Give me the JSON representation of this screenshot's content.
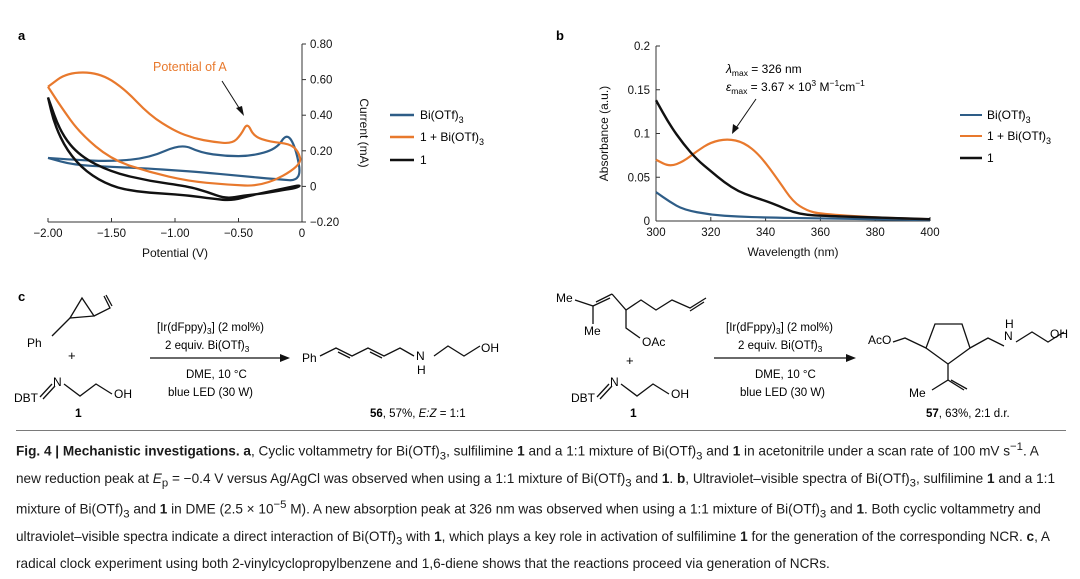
{
  "colors": {
    "blue": "#2e5d87",
    "orange": "#e8792d",
    "black": "#111111",
    "axis": "#333333"
  },
  "panel_a": {
    "label": "a",
    "annotation": "Potential of A",
    "legend": [
      {
        "name": "Bi(OTf)",
        "sub": "3",
        "color": "#2e5d87"
      },
      {
        "name": "1 + Bi(OTf)",
        "sub": "3",
        "color": "#e8792d"
      },
      {
        "name": "1",
        "sub": "",
        "color": "#111111"
      }
    ]
  },
  "panel_b": {
    "label": "b",
    "lambda_label": "λ",
    "lambda_sub": "max",
    "lambda_value": " = 326 nm",
    "epsilon_label": "ε",
    "epsilon_sub": "max",
    "epsilon_value": " = 3.67 × 10",
    "epsilon_exp": "3",
    "epsilon_unit1": " M",
    "epsilon_exp2": "−1",
    "epsilon_unit2": "cm",
    "epsilon_exp3": "−1",
    "legend": [
      {
        "name": "Bi(OTf)",
        "sub": "3",
        "color": "#2e5d87"
      },
      {
        "name": "1 + Bi(OTf)",
        "sub": "3",
        "color": "#e8792d"
      },
      {
        "name": "1",
        "sub": "",
        "color": "#111111"
      }
    ]
  },
  "chart_data": [
    {
      "type": "line",
      "title": "",
      "xlabel": "Potential (V)",
      "ylabel": "Current (mA)",
      "xlim": [
        -2.0,
        0
      ],
      "ylim": [
        -0.2,
        0.8
      ],
      "xticks": [
        "−2.00",
        "−1.50",
        "−1.00",
        "−0.50",
        "0"
      ],
      "xtick_values": [
        -2.0,
        -1.5,
        -1.0,
        -0.5,
        0
      ],
      "yticks": [
        "0.80",
        "0.60",
        "0.40",
        "0.20",
        "0",
        "−0.20"
      ],
      "ytick_values": [
        0.8,
        0.6,
        0.4,
        0.2,
        0,
        -0.2
      ],
      "annotation": {
        "text": "Potential of A",
        "x": -0.45,
        "y": 0.37
      },
      "series": [
        {
          "name": "Bi(OTf)3",
          "color": "#2e5d87",
          "points": [
            [
              -2.0,
              0.16
            ],
            [
              -1.8,
              0.15
            ],
            [
              -1.5,
              0.14
            ],
            [
              -1.2,
              0.16
            ],
            [
              -0.95,
              0.24
            ],
            [
              -0.8,
              0.19
            ],
            [
              -0.6,
              0.17
            ],
            [
              -0.4,
              0.17
            ],
            [
              -0.2,
              0.21
            ],
            [
              -0.12,
              0.3
            ],
            [
              -0.05,
              0.22
            ],
            [
              0,
              0.03
            ],
            [
              -0.2,
              0.04
            ],
            [
              -0.5,
              0.06
            ],
            [
              -0.8,
              0.08
            ],
            [
              -1.0,
              0.09
            ],
            [
              -1.2,
              0.1
            ],
            [
              -1.5,
              0.11
            ],
            [
              -1.8,
              0.12
            ],
            [
              -2.0,
              0.16
            ]
          ]
        },
        {
          "name": "1 + Bi(OTf)3",
          "color": "#e8792d",
          "points": [
            [
              -2.0,
              0.56
            ],
            [
              -1.85,
              0.64
            ],
            [
              -1.6,
              0.64
            ],
            [
              -1.4,
              0.55
            ],
            [
              -1.2,
              0.4
            ],
            [
              -1.0,
              0.31
            ],
            [
              -0.85,
              0.27
            ],
            [
              -0.7,
              0.25
            ],
            [
              -0.55,
              0.24
            ],
            [
              -0.48,
              0.29
            ],
            [
              -0.43,
              0.36
            ],
            [
              -0.38,
              0.28
            ],
            [
              -0.25,
              0.25
            ],
            [
              -0.1,
              0.24
            ],
            [
              -0.03,
              0.2
            ],
            [
              0,
              0.12
            ],
            [
              -0.3,
              0.0
            ],
            [
              -0.6,
              0.01
            ],
            [
              -0.9,
              0.03
            ],
            [
              -1.2,
              0.08
            ],
            [
              -1.5,
              0.15
            ],
            [
              -1.75,
              0.3
            ],
            [
              -1.9,
              0.45
            ],
            [
              -2.0,
              0.56
            ]
          ]
        },
        {
          "name": "1",
          "color": "#111111",
          "points": [
            [
              -2.0,
              0.5
            ],
            [
              -1.9,
              0.3
            ],
            [
              -1.75,
              0.17
            ],
            [
              -1.5,
              0.08
            ],
            [
              -1.2,
              0.03
            ],
            [
              -0.9,
              0.0
            ],
            [
              -0.75,
              -0.03
            ],
            [
              -0.6,
              -0.07
            ],
            [
              -0.45,
              -0.05
            ],
            [
              -0.3,
              -0.04
            ],
            [
              -0.15,
              -0.02
            ],
            [
              -0.05,
              -0.01
            ],
            [
              0,
              0.01
            ],
            [
              -0.2,
              -0.02
            ],
            [
              -0.4,
              -0.05
            ],
            [
              -0.55,
              -0.08
            ],
            [
              -0.7,
              -0.07
            ],
            [
              -0.9,
              -0.05
            ],
            [
              -1.1,
              -0.04
            ],
            [
              -1.3,
              -0.03
            ],
            [
              -1.5,
              0.0
            ],
            [
              -1.7,
              0.08
            ],
            [
              -1.85,
              0.2
            ],
            [
              -1.95,
              0.35
            ],
            [
              -2.0,
              0.5
            ]
          ]
        }
      ]
    },
    {
      "type": "line",
      "title": "",
      "xlabel": "Wavelength (nm)",
      "ylabel": "Absorbance (a.u.)",
      "xlim": [
        300,
        400
      ],
      "ylim": [
        0,
        0.2
      ],
      "xticks": [
        "300",
        "320",
        "340",
        "360",
        "380",
        "400"
      ],
      "xtick_values": [
        300,
        320,
        340,
        360,
        380,
        400
      ],
      "yticks": [
        "0.2",
        "0.15",
        "0.1",
        "0.05",
        "0"
      ],
      "ytick_values": [
        0.2,
        0.15,
        0.1,
        0.05,
        0
      ],
      "annotation": {
        "text": "λmax = 326 nm",
        "x": 326,
        "y": 0.094
      },
      "series": [
        {
          "name": "Bi(OTf)3",
          "color": "#2e5d87",
          "points": [
            [
              300,
              0.033
            ],
            [
              305,
              0.022
            ],
            [
              310,
              0.013
            ],
            [
              320,
              0.007
            ],
            [
              330,
              0.005
            ],
            [
              340,
              0.004
            ],
            [
              360,
              0.003
            ],
            [
              380,
              0.002
            ],
            [
              400,
              0.001
            ]
          ]
        },
        {
          "name": "1 + Bi(OTf)3",
          "color": "#e8792d",
          "points": [
            [
              300,
              0.07
            ],
            [
              305,
              0.062
            ],
            [
              310,
              0.068
            ],
            [
              315,
              0.08
            ],
            [
              320,
              0.09
            ],
            [
              326,
              0.094
            ],
            [
              332,
              0.09
            ],
            [
              338,
              0.075
            ],
            [
              345,
              0.045
            ],
            [
              350,
              0.022
            ],
            [
              355,
              0.012
            ],
            [
              360,
              0.008
            ],
            [
              380,
              0.004
            ],
            [
              400,
              0.002
            ]
          ]
        },
        {
          "name": "1",
          "color": "#111111",
          "points": [
            [
              300,
              0.138
            ],
            [
              305,
              0.11
            ],
            [
              310,
              0.088
            ],
            [
              315,
              0.07
            ],
            [
              320,
              0.057
            ],
            [
              325,
              0.044
            ],
            [
              330,
              0.034
            ],
            [
              335,
              0.028
            ],
            [
              340,
              0.023
            ],
            [
              345,
              0.017
            ],
            [
              350,
              0.01
            ],
            [
              355,
              0.007
            ],
            [
              360,
              0.006
            ],
            [
              380,
              0.004
            ],
            [
              400,
              0.002
            ]
          ]
        }
      ]
    }
  ],
  "panel_c": {
    "label": "c",
    "left": {
      "reactant_ph": "Ph",
      "plus": "+",
      "dbt": "DBT",
      "n": "N",
      "oh": "OH",
      "reactant_label": "1",
      "cond_cat": "[Ir(dFppy)",
      "cond_cat_sub": "3",
      "cond_cat_end": "] (2 mol%)",
      "cond_equiv": "2 equiv. Bi(OTf)",
      "cond_equiv_sub": "3",
      "cond_solvent": "DME, 10 °C",
      "cond_light": "blue LED (30 W)",
      "product_ph": "Ph",
      "product_nh": "N",
      "product_h": "H",
      "product_oh": "OH",
      "product_num": "56",
      "product_yield": ", 57%, ",
      "product_ez": "E:Z",
      "product_ratio": " = 1:1"
    },
    "right": {
      "me_top": "Me",
      "me_bottom": "Me",
      "oac": "OAc",
      "plus": "+",
      "dbt": "DBT",
      "n": "N",
      "oh": "OH",
      "reactant_label": "1",
      "cond_cat": "[Ir(dFppy)",
      "cond_cat_sub": "3",
      "cond_cat_end": "] (2 mol%)",
      "cond_equiv": "2 equiv. Bi(OTf)",
      "cond_equiv_sub": "3",
      "cond_solvent": "DME, 10 °C",
      "cond_light": "blue LED (30 W)",
      "aco": "AcO",
      "prod_n": "N",
      "prod_h": "H",
      "prod_oh": "OH",
      "prod_me": "Me",
      "product_num": "57",
      "product_rest": ", 63%, 2:1 d.r."
    }
  },
  "caption": {
    "fig": "Fig. 4 | Mechanistic investigations.",
    "a": "a",
    "t1": ", Cyclic voltammetry for Bi(OTf)",
    "t2": ", sulfilimine ",
    "t3": " and a 1:1 mixture of Bi(OTf)",
    "t4": " and ",
    "t5": " in acetonitrile under a scan rate of 100 mV s",
    "t5exp": "−1",
    "t6": ". A new reduction peak at ",
    "ep": "E",
    "ep_sub": "p",
    "t7": " = −0.4 V versus Ag/AgCl was observed when using a 1:1 mixture of Bi(OTf)",
    "t8": " and ",
    "t9": ". ",
    "b": "b",
    "t10": ", Ultraviolet–visible spectra of Bi(OTf)",
    "t11": ", sulfilimine ",
    "t12": " and a 1:1 mixture of Bi(OTf)",
    "t13": " and ",
    "t14": " in DME (2.5 × 10",
    "t14exp": "−5",
    "t15": " M). A new absorption peak at 326 nm was observed when using a 1:1 mixture of Bi(OTf)",
    "t16": " and ",
    "t17": ". Both cyclic voltammetry and ultraviolet–visible spectra indicate a direct interaction of Bi(OTf)",
    "t18": " with ",
    "t19": ", which plays a key role in activation of sulfilimine ",
    "t20": " for the generation of the corresponding NCR. ",
    "c": "c",
    "t21": ", A radical clock experiment using both 2-vinylcyclopropylbenzene and 1,6-diene shows that the reactions proceed via generation of NCRs.",
    "one": "1",
    "three": "3"
  }
}
